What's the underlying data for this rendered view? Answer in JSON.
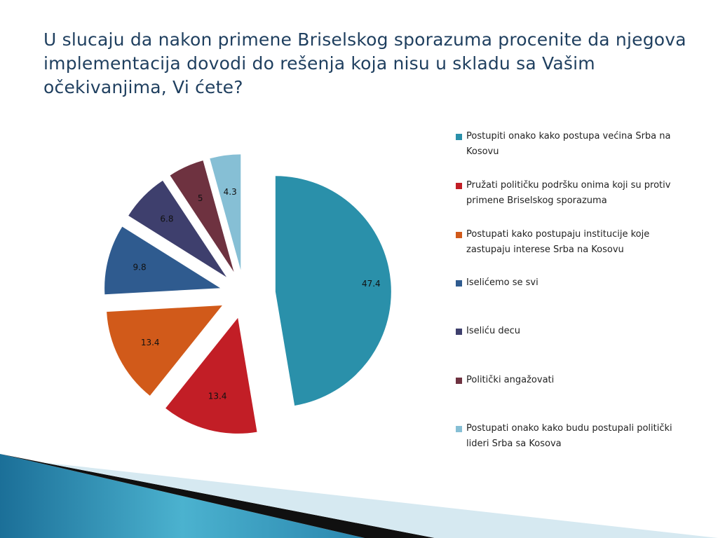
{
  "slide": {
    "title": "U slucaju da nakon primene Briselskog sporazuma procenite da njegova implementacija dovodi do rešenja koja nisu u skladu sa Vašim očekivanjima, Vi ćete?"
  },
  "chart_data": {
    "type": "pie",
    "title": "",
    "legend_position": "right",
    "exploded": true,
    "categories": [
      "Postupiti onako kako postupa većina Srba na Kosovu",
      "Pružati političku podršku onima koji su protiv primene Briselskog sporazuma",
      "Postupati kako postupaju institucije koje zastupaju interese Srba na Kosovu",
      "Iselićemo se svi",
      "Iseliću decu",
      "Politički angažovati",
      "Postupati onako kako budu postupali politički lideri Srba sa Kosova"
    ],
    "values": [
      47.4,
      13.4,
      13.4,
      9.8,
      6.8,
      5,
      4.3
    ],
    "data_labels": [
      "47.4",
      "13.4",
      "13.4",
      "9.8",
      "6.8",
      "5",
      "4.3"
    ],
    "colors": [
      "#2a90aa",
      "#c21e26",
      "#d15a1a",
      "#2f5b8f",
      "#3e3f6d",
      "#6e3240",
      "#86bfd5"
    ]
  }
}
